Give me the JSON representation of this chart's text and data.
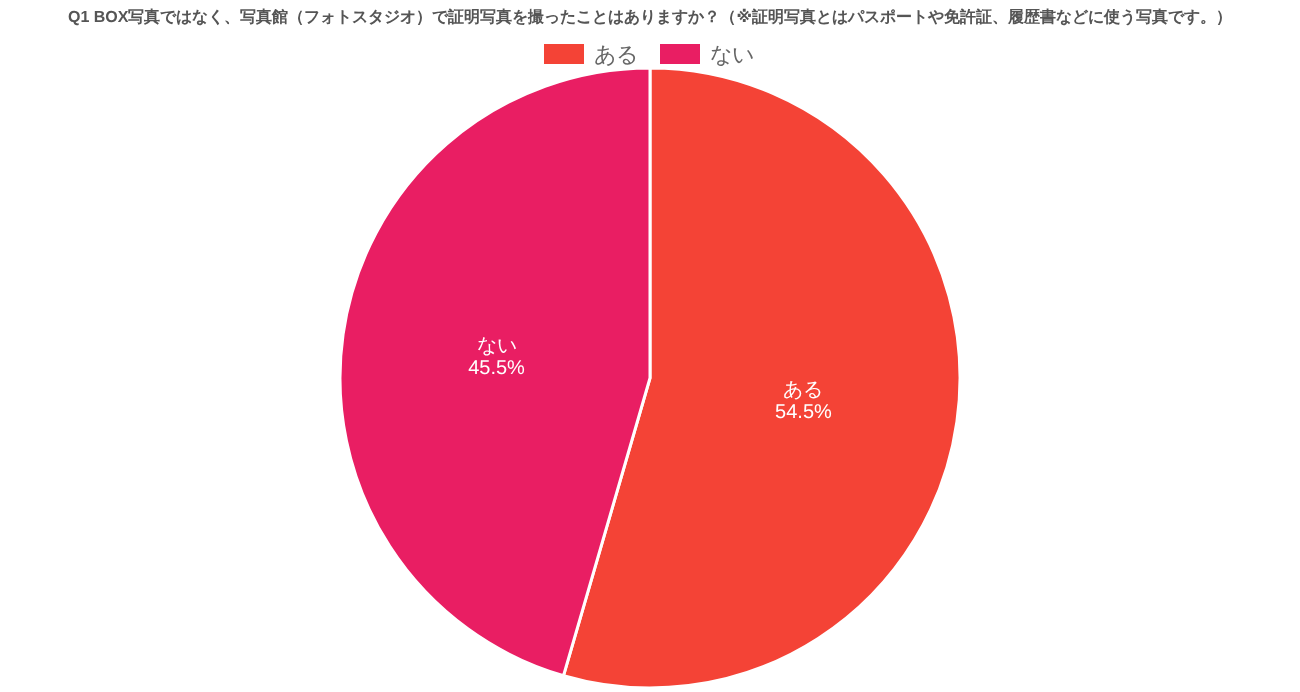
{
  "chart_data": {
    "type": "pie",
    "title": "Q1 BOX写真ではなく、写真館（フォトスタジオ）で証明写真を撮ったことはありますか？（※証明写真とはパスポートや免許証、履歴書などに使う写真です。）",
    "categories": [
      "ある",
      "ない"
    ],
    "values": [
      54.5,
      45.5
    ],
    "colors": [
      "#f44336",
      "#e91e63"
    ],
    "value_labels": [
      "54.5%",
      "45.5%"
    ],
    "legend": "top"
  }
}
